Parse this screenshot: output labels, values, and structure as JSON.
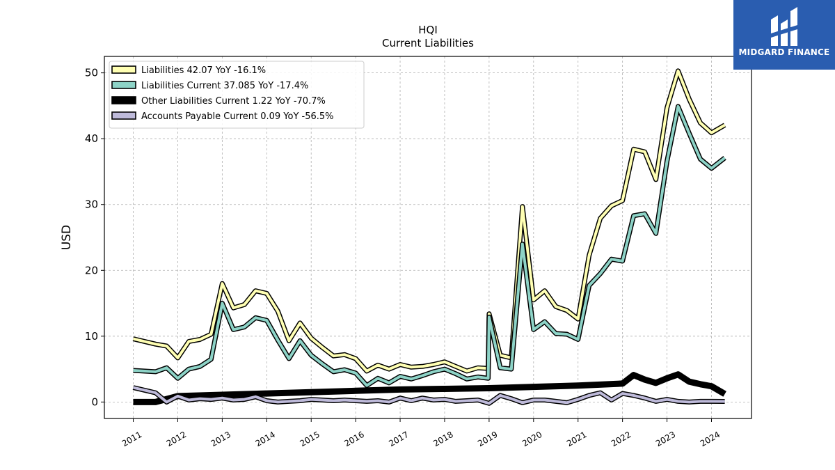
{
  "brand": {
    "name": "MIDGARD FINANCE",
    "bg_color": "#2a5db0"
  },
  "chart_data": {
    "type": "line",
    "title": "HQI",
    "subtitle": "Current  Liabilities",
    "ylabel": "USD",
    "xlabel": "",
    "ylim": [
      -2.5,
      52.5
    ],
    "yticks": [
      0,
      10,
      20,
      30,
      40,
      50
    ],
    "xlim": [
      2010.35,
      2024.9
    ],
    "xticks": [
      2011,
      2012,
      2013,
      2014,
      2015,
      2016,
      2017,
      2018,
      2019,
      2020,
      2021,
      2022,
      2023,
      2024
    ],
    "grid": true,
    "legend_position": "top-left",
    "series": [
      {
        "name": "Liabilities",
        "legend_label": "Liabilities  42.07 YoY -16.1%",
        "color": "#ffffb3",
        "lineweight": 4,
        "x": [
          2011.0,
          2011.5,
          2011.75,
          2012.0,
          2012.25,
          2012.5,
          2012.75,
          2013.0,
          2013.25,
          2013.5,
          2013.75,
          2014.0,
          2014.25,
          2014.5,
          2014.75,
          2015.0,
          2015.25,
          2015.5,
          2015.75,
          2016.0,
          2016.25,
          2016.5,
          2016.75,
          2017.0,
          2017.25,
          2017.5,
          2017.75,
          2018.0,
          2018.25,
          2018.5,
          2018.75,
          2018.98,
          2019.0,
          2019.25,
          2019.5,
          2019.75,
          2020.0,
          2020.25,
          2020.5,
          2020.75,
          2021.0,
          2021.25,
          2021.5,
          2021.75,
          2022.0,
          2022.25,
          2022.5,
          2022.75,
          2023.0,
          2023.25,
          2023.5,
          2023.75,
          2024.0,
          2024.3
        ],
        "y": [
          9.6,
          8.8,
          8.5,
          6.7,
          9.2,
          9.5,
          10.3,
          18.0,
          14.3,
          14.8,
          16.9,
          16.5,
          13.8,
          9.3,
          12.0,
          9.7,
          8.3,
          7.0,
          7.2,
          6.6,
          4.7,
          5.6,
          5.0,
          5.7,
          5.3,
          5.4,
          5.7,
          6.1,
          5.4,
          4.7,
          5.2,
          5.1,
          13.4,
          7.1,
          6.7,
          29.7,
          15.5,
          16.9,
          14.5,
          13.9,
          12.6,
          22.3,
          27.9,
          29.8,
          30.6,
          38.4,
          38.0,
          33.8,
          44.7,
          50.3,
          46.0,
          42.4,
          40.9,
          42.07
        ]
      },
      {
        "name": "Liabilities Current",
        "legend_label": "Liabilities Current  37.085 YoY -17.4%",
        "color": "#8dd3c7",
        "lineweight": 4,
        "x": [
          2011.0,
          2011.5,
          2011.75,
          2012.0,
          2012.25,
          2012.5,
          2012.75,
          2013.0,
          2013.25,
          2013.5,
          2013.75,
          2014.0,
          2014.25,
          2014.5,
          2014.75,
          2015.0,
          2015.25,
          2015.5,
          2015.75,
          2016.0,
          2016.25,
          2016.5,
          2016.75,
          2017.0,
          2017.25,
          2017.5,
          2017.75,
          2018.0,
          2018.25,
          2018.5,
          2018.75,
          2018.98,
          2019.0,
          2019.25,
          2019.5,
          2019.75,
          2020.0,
          2020.25,
          2020.5,
          2020.75,
          2021.0,
          2021.25,
          2021.5,
          2021.75,
          2022.0,
          2022.25,
          2022.5,
          2022.75,
          2023.0,
          2023.25,
          2023.5,
          2023.75,
          2024.0,
          2024.3
        ],
        "y": [
          4.8,
          4.6,
          5.2,
          3.6,
          5.0,
          5.4,
          6.5,
          15.0,
          11.0,
          11.4,
          12.8,
          12.4,
          9.4,
          6.6,
          9.3,
          7.1,
          5.8,
          4.6,
          4.9,
          4.4,
          2.5,
          3.6,
          2.9,
          3.9,
          3.5,
          4.0,
          4.6,
          5.0,
          4.3,
          3.5,
          3.8,
          3.6,
          12.9,
          5.2,
          5.0,
          24.0,
          11.0,
          12.2,
          10.4,
          10.3,
          9.5,
          17.7,
          19.5,
          21.7,
          21.4,
          28.3,
          28.6,
          25.6,
          36.6,
          44.9,
          40.8,
          36.9,
          35.5,
          37.085
        ]
      },
      {
        "name": "Other Liabilities Current",
        "legend_label": "Other Liabilities Current  1.22 YoY -70.7%",
        "color": "#000000",
        "lineweight": 6,
        "x": [
          2011.0,
          2011.5,
          2012.0,
          2013.0,
          2014.0,
          2015.0,
          2016.0,
          2017.0,
          2018.0,
          2019.0,
          2020.0,
          2021.0,
          2022.0,
          2022.25,
          2022.5,
          2022.75,
          2023.0,
          2023.25,
          2023.5,
          2023.75,
          2024.0,
          2024.3
        ],
        "y": [
          0.0,
          0.0,
          0.9,
          1.1,
          1.3,
          1.5,
          1.7,
          1.9,
          2.0,
          2.1,
          2.3,
          2.5,
          2.8,
          4.1,
          3.4,
          2.9,
          3.6,
          4.2,
          3.1,
          2.7,
          2.4,
          1.22
        ]
      },
      {
        "name": "Accounts Payable Current",
        "legend_label": "Accounts Payable Current  0.09 YoY -56.5%",
        "color": "#bebada",
        "lineweight": 4,
        "x": [
          2011.0,
          2011.5,
          2011.75,
          2012.0,
          2012.25,
          2012.5,
          2012.75,
          2013.0,
          2013.25,
          2013.5,
          2013.75,
          2014.0,
          2014.25,
          2014.5,
          2014.75,
          2015.0,
          2015.25,
          2015.5,
          2015.75,
          2016.0,
          2016.25,
          2016.5,
          2016.75,
          2017.0,
          2017.25,
          2017.5,
          2017.75,
          2018.0,
          2018.25,
          2018.5,
          2018.75,
          2019.0,
          2019.25,
          2019.5,
          2019.75,
          2020.0,
          2020.25,
          2020.5,
          2020.75,
          2021.0,
          2021.25,
          2021.5,
          2021.75,
          2022.0,
          2022.25,
          2022.5,
          2022.75,
          2023.0,
          2023.25,
          2023.5,
          2023.75,
          2024.0,
          2024.3
        ],
        "y": [
          2.2,
          1.4,
          0.0,
          0.9,
          0.3,
          0.5,
          0.4,
          0.6,
          0.3,
          0.4,
          0.8,
          0.2,
          0.0,
          0.1,
          0.2,
          0.4,
          0.3,
          0.2,
          0.3,
          0.2,
          0.1,
          0.2,
          0.0,
          0.6,
          0.2,
          0.6,
          0.3,
          0.4,
          0.1,
          0.2,
          0.3,
          -0.2,
          1.0,
          0.5,
          -0.1,
          0.3,
          0.3,
          0.1,
          -0.1,
          0.4,
          1.0,
          1.4,
          0.3,
          1.3,
          1.0,
          0.6,
          0.1,
          0.4,
          0.1,
          0.0,
          0.1,
          0.1,
          0.09
        ]
      }
    ]
  }
}
